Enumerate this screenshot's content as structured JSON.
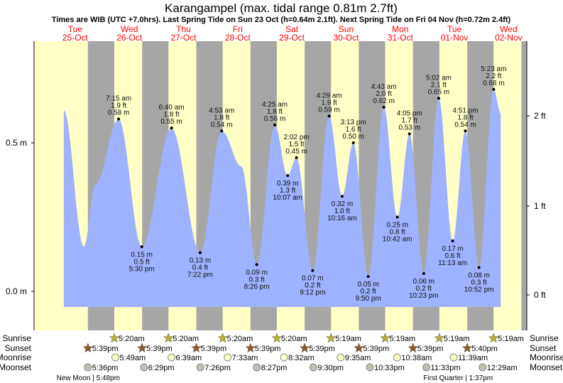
{
  "chart_data": {
    "type": "area",
    "title": "Karangampel (max. tidal range 0.81m 2.7ft)",
    "subtitle": "Times are WIB (UTC +7.0hrs). Last Spring Tide on Sun 23 Oct (h=0.64m 2.1ft). Next Spring Tide on Fri 04 Nov (h=0.72m 2.4ft)",
    "days": [
      {
        "dow": "Tue",
        "date": "25-Oct"
      },
      {
        "dow": "Wed",
        "date": "26-Oct"
      },
      {
        "dow": "Thu",
        "date": "27-Oct"
      },
      {
        "dow": "Fri",
        "date": "28-Oct"
      },
      {
        "dow": "Sat",
        "date": "29-Oct"
      },
      {
        "dow": "Sun",
        "date": "30-Oct"
      },
      {
        "dow": "Mon",
        "date": "31-Oct"
      },
      {
        "dow": "Tue",
        "date": "01-Nov"
      },
      {
        "dow": "Wed",
        "date": "02-Nov"
      }
    ],
    "y_left_ticks": [
      {
        "v": 0.0,
        "label": "0.0 m"
      },
      {
        "v": 0.5,
        "label": "0.5 m"
      }
    ],
    "y_right_ticks": [
      {
        "v": 0,
        "label": "0 ft"
      },
      {
        "v": 1,
        "label": "1 ft"
      },
      {
        "v": 2,
        "label": "2 ft"
      }
    ],
    "ylim_m": [
      -0.05,
      0.84
    ],
    "curve_extra_points": [
      {
        "day": 0,
        "time": "7:00am",
        "m": 0.61
      },
      {
        "day": 0,
        "time": "3:50pm",
        "m": 0.15
      },
      {
        "day": 0,
        "time": "9:00pm",
        "m": 0.36
      },
      {
        "day": 0,
        "time": "9:00pm",
        "m": 0.36
      },
      {
        "day": 3,
        "time": "1:40pm",
        "m": 0.42
      },
      {
        "day": 8,
        "time": "8:30am",
        "m": 0.6
      }
    ],
    "tides": [
      {
        "day": 1,
        "time": "7:15 am",
        "ft": "1.9 ft",
        "m": 0.58,
        "type": "high"
      },
      {
        "day": 1,
        "time": "5:30 pm",
        "ft": "0.5 ft",
        "m": 0.15,
        "type": "low"
      },
      {
        "day": 2,
        "time": "6:40 am",
        "ft": "1.8 ft",
        "m": 0.55,
        "type": "high"
      },
      {
        "day": 2,
        "time": "7:22 pm",
        "ft": "0.4 ft",
        "m": 0.13,
        "type": "low"
      },
      {
        "day": 3,
        "time": "4:53 am",
        "ft": "1.8 ft",
        "m": 0.54,
        "type": "high"
      },
      {
        "day": 3,
        "time": "8:26 pm",
        "ft": "0.3 ft",
        "m": 0.09,
        "type": "low"
      },
      {
        "day": 4,
        "time": "4:25 am",
        "ft": "1.8 ft",
        "m": 0.56,
        "type": "high"
      },
      {
        "day": 4,
        "time": "10:07 am",
        "ft": "1.3 ft",
        "m": 0.39,
        "type": "low"
      },
      {
        "day": 4,
        "time": "2:02 pm",
        "ft": "1.5 ft",
        "m": 0.45,
        "type": "high"
      },
      {
        "day": 4,
        "time": "9:12 pm",
        "ft": "0.2 ft",
        "m": 0.07,
        "type": "low"
      },
      {
        "day": 5,
        "time": "4:29 am",
        "ft": "1.9 ft",
        "m": 0.59,
        "type": "high"
      },
      {
        "day": 5,
        "time": "10:16 am",
        "ft": "1.0 ft",
        "m": 0.32,
        "type": "low"
      },
      {
        "day": 5,
        "time": "3:13 pm",
        "ft": "1.6 ft",
        "m": 0.5,
        "type": "high"
      },
      {
        "day": 5,
        "time": "9:50 pm",
        "ft": "0.2 ft",
        "m": 0.05,
        "type": "low"
      },
      {
        "day": 6,
        "time": "4:43 am",
        "ft": "2.0 ft",
        "m": 0.62,
        "type": "high"
      },
      {
        "day": 6,
        "time": "10:42 am",
        "ft": "0.8 ft",
        "m": 0.25,
        "type": "low"
      },
      {
        "day": 6,
        "time": "4:05 pm",
        "ft": "1.7 ft",
        "m": 0.53,
        "type": "high"
      },
      {
        "day": 6,
        "time": "10:23 pm",
        "ft": "0.2 ft",
        "m": 0.06,
        "type": "low"
      },
      {
        "day": 7,
        "time": "5:02 am",
        "ft": "2.1 ft",
        "m": 0.65,
        "type": "high"
      },
      {
        "day": 7,
        "time": "11:13 am",
        "ft": "0.6 ft",
        "m": 0.17,
        "type": "low"
      },
      {
        "day": 7,
        "time": "4:51 pm",
        "ft": "1.8 ft",
        "m": 0.54,
        "type": "high"
      },
      {
        "day": 7,
        "time": "10:52 pm",
        "ft": "0.3 ft",
        "m": 0.08,
        "type": "low"
      },
      {
        "day": 8,
        "time": "5:23 am",
        "ft": "2.2 ft",
        "m": 0.68,
        "type": "high"
      }
    ],
    "rows": {
      "sunrise": {
        "label": "Sunrise",
        "events": [
          {
            "day": 1,
            "time": "5:20am"
          },
          {
            "day": 2,
            "time": "5:20am"
          },
          {
            "day": 3,
            "time": "5:20am"
          },
          {
            "day": 4,
            "time": "5:20am"
          },
          {
            "day": 5,
            "time": "5:19am"
          },
          {
            "day": 6,
            "time": "5:19am"
          },
          {
            "day": 7,
            "time": "5:19am"
          },
          {
            "day": 8,
            "time": "5:19am"
          }
        ]
      },
      "sunset": {
        "label": "Sunset",
        "events": [
          {
            "day": 0,
            "time": "5:39pm"
          },
          {
            "day": 1,
            "time": "5:39pm"
          },
          {
            "day": 2,
            "time": "5:39pm"
          },
          {
            "day": 3,
            "time": "5:39pm"
          },
          {
            "day": 4,
            "time": "5:39pm"
          },
          {
            "day": 5,
            "time": "5:39pm"
          },
          {
            "day": 6,
            "time": "5:39pm"
          },
          {
            "day": 7,
            "time": "5:40pm"
          }
        ]
      },
      "moonrise": {
        "label": "Moonrise",
        "events": [
          {
            "day": 1,
            "time": "5:49am"
          },
          {
            "day": 2,
            "time": "6:39am"
          },
          {
            "day": 3,
            "time": "7:33am"
          },
          {
            "day": 4,
            "time": "8:32am"
          },
          {
            "day": 5,
            "time": "9:35am"
          },
          {
            "day": 6,
            "time": "10:38am"
          },
          {
            "day": 7,
            "time": "11:39am"
          }
        ]
      },
      "moonset": {
        "label": "Moonset",
        "events": [
          {
            "day": 0,
            "time": "5:36pm"
          },
          {
            "day": 1,
            "time": "6:29pm"
          },
          {
            "day": 2,
            "time": "7:26pm"
          },
          {
            "day": 3,
            "time": "8:27pm"
          },
          {
            "day": 4,
            "time": "9:30pm"
          },
          {
            "day": 5,
            "time": "10:33pm"
          },
          {
            "day": 6,
            "time": "11:33pm"
          },
          {
            "day": 8,
            "time": "12:29am"
          }
        ]
      }
    },
    "moon_phases": [
      {
        "day": 0,
        "time": "5:48pm",
        "label": "New Moon | 5:48pm"
      },
      {
        "day": 7,
        "time": "1:37pm",
        "label": "First Quarter | 1:37pm"
      }
    ],
    "colors": {
      "day": "#ffffc6",
      "night": "#a6a6a6",
      "water": "#9fb2ff",
      "dayLabel": "#ff0000",
      "sunrise": "#b8b030",
      "sunset": "#8c5a2c",
      "moonrise": "#ffffc6",
      "moonset": "#c0c0b0"
    }
  }
}
